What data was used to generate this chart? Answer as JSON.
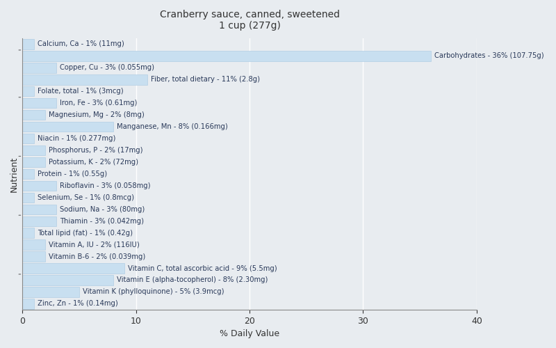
{
  "title": "Cranberry sauce, canned, sweetened\n1 cup (277g)",
  "xlabel": "% Daily Value",
  "ylabel": "Nutrient",
  "xlim": [
    0,
    40
  ],
  "bar_color": "#c8dff0",
  "bar_edge_color": "#a8c8e0",
  "text_color": "#2a3a5a",
  "background_color": "#e8ecf0",
  "axes_background": "#e8ecf0",
  "grid_color": "#ffffff",
  "ytick_color": "#555555",
  "title_fontsize": 10,
  "label_fontsize": 7.2,
  "xlabel_fontsize": 9,
  "ylabel_fontsize": 9,
  "nutrients": [
    {
      "label": "Calcium, Ca - 1% (11mg)",
      "value": 1
    },
    {
      "label": "Carbohydrates - 36% (107.75g)",
      "value": 36
    },
    {
      "label": "Copper, Cu - 3% (0.055mg)",
      "value": 3
    },
    {
      "label": "Fiber, total dietary - 11% (2.8g)",
      "value": 11
    },
    {
      "label": "Folate, total - 1% (3mcg)",
      "value": 1
    },
    {
      "label": "Iron, Fe - 3% (0.61mg)",
      "value": 3
    },
    {
      "label": "Magnesium, Mg - 2% (8mg)",
      "value": 2
    },
    {
      "label": "Manganese, Mn - 8% (0.166mg)",
      "value": 8
    },
    {
      "label": "Niacin - 1% (0.277mg)",
      "value": 1
    },
    {
      "label": "Phosphorus, P - 2% (17mg)",
      "value": 2
    },
    {
      "label": "Potassium, K - 2% (72mg)",
      "value": 2
    },
    {
      "label": "Protein - 1% (0.55g)",
      "value": 1
    },
    {
      "label": "Riboflavin - 3% (0.058mg)",
      "value": 3
    },
    {
      "label": "Selenium, Se - 1% (0.8mcg)",
      "value": 1
    },
    {
      "label": "Sodium, Na - 3% (80mg)",
      "value": 3
    },
    {
      "label": "Thiamin - 3% (0.042mg)",
      "value": 3
    },
    {
      "label": "Total lipid (fat) - 1% (0.42g)",
      "value": 1
    },
    {
      "label": "Vitamin A, IU - 2% (116IU)",
      "value": 2
    },
    {
      "label": "Vitamin B-6 - 2% (0.039mg)",
      "value": 2
    },
    {
      "label": "Vitamin C, total ascorbic acid - 9% (5.5mg)",
      "value": 9
    },
    {
      "label": "Vitamin E (alpha-tocopherol) - 8% (2.30mg)",
      "value": 8
    },
    {
      "label": "Vitamin K (phylloquinone) - 5% (3.9mcg)",
      "value": 5
    },
    {
      "label": "Zinc, Zn - 1% (0.14mg)",
      "value": 1
    }
  ],
  "ytick_positions": [
    2.5,
    7.5,
    12.5,
    17.5,
    21.5
  ]
}
